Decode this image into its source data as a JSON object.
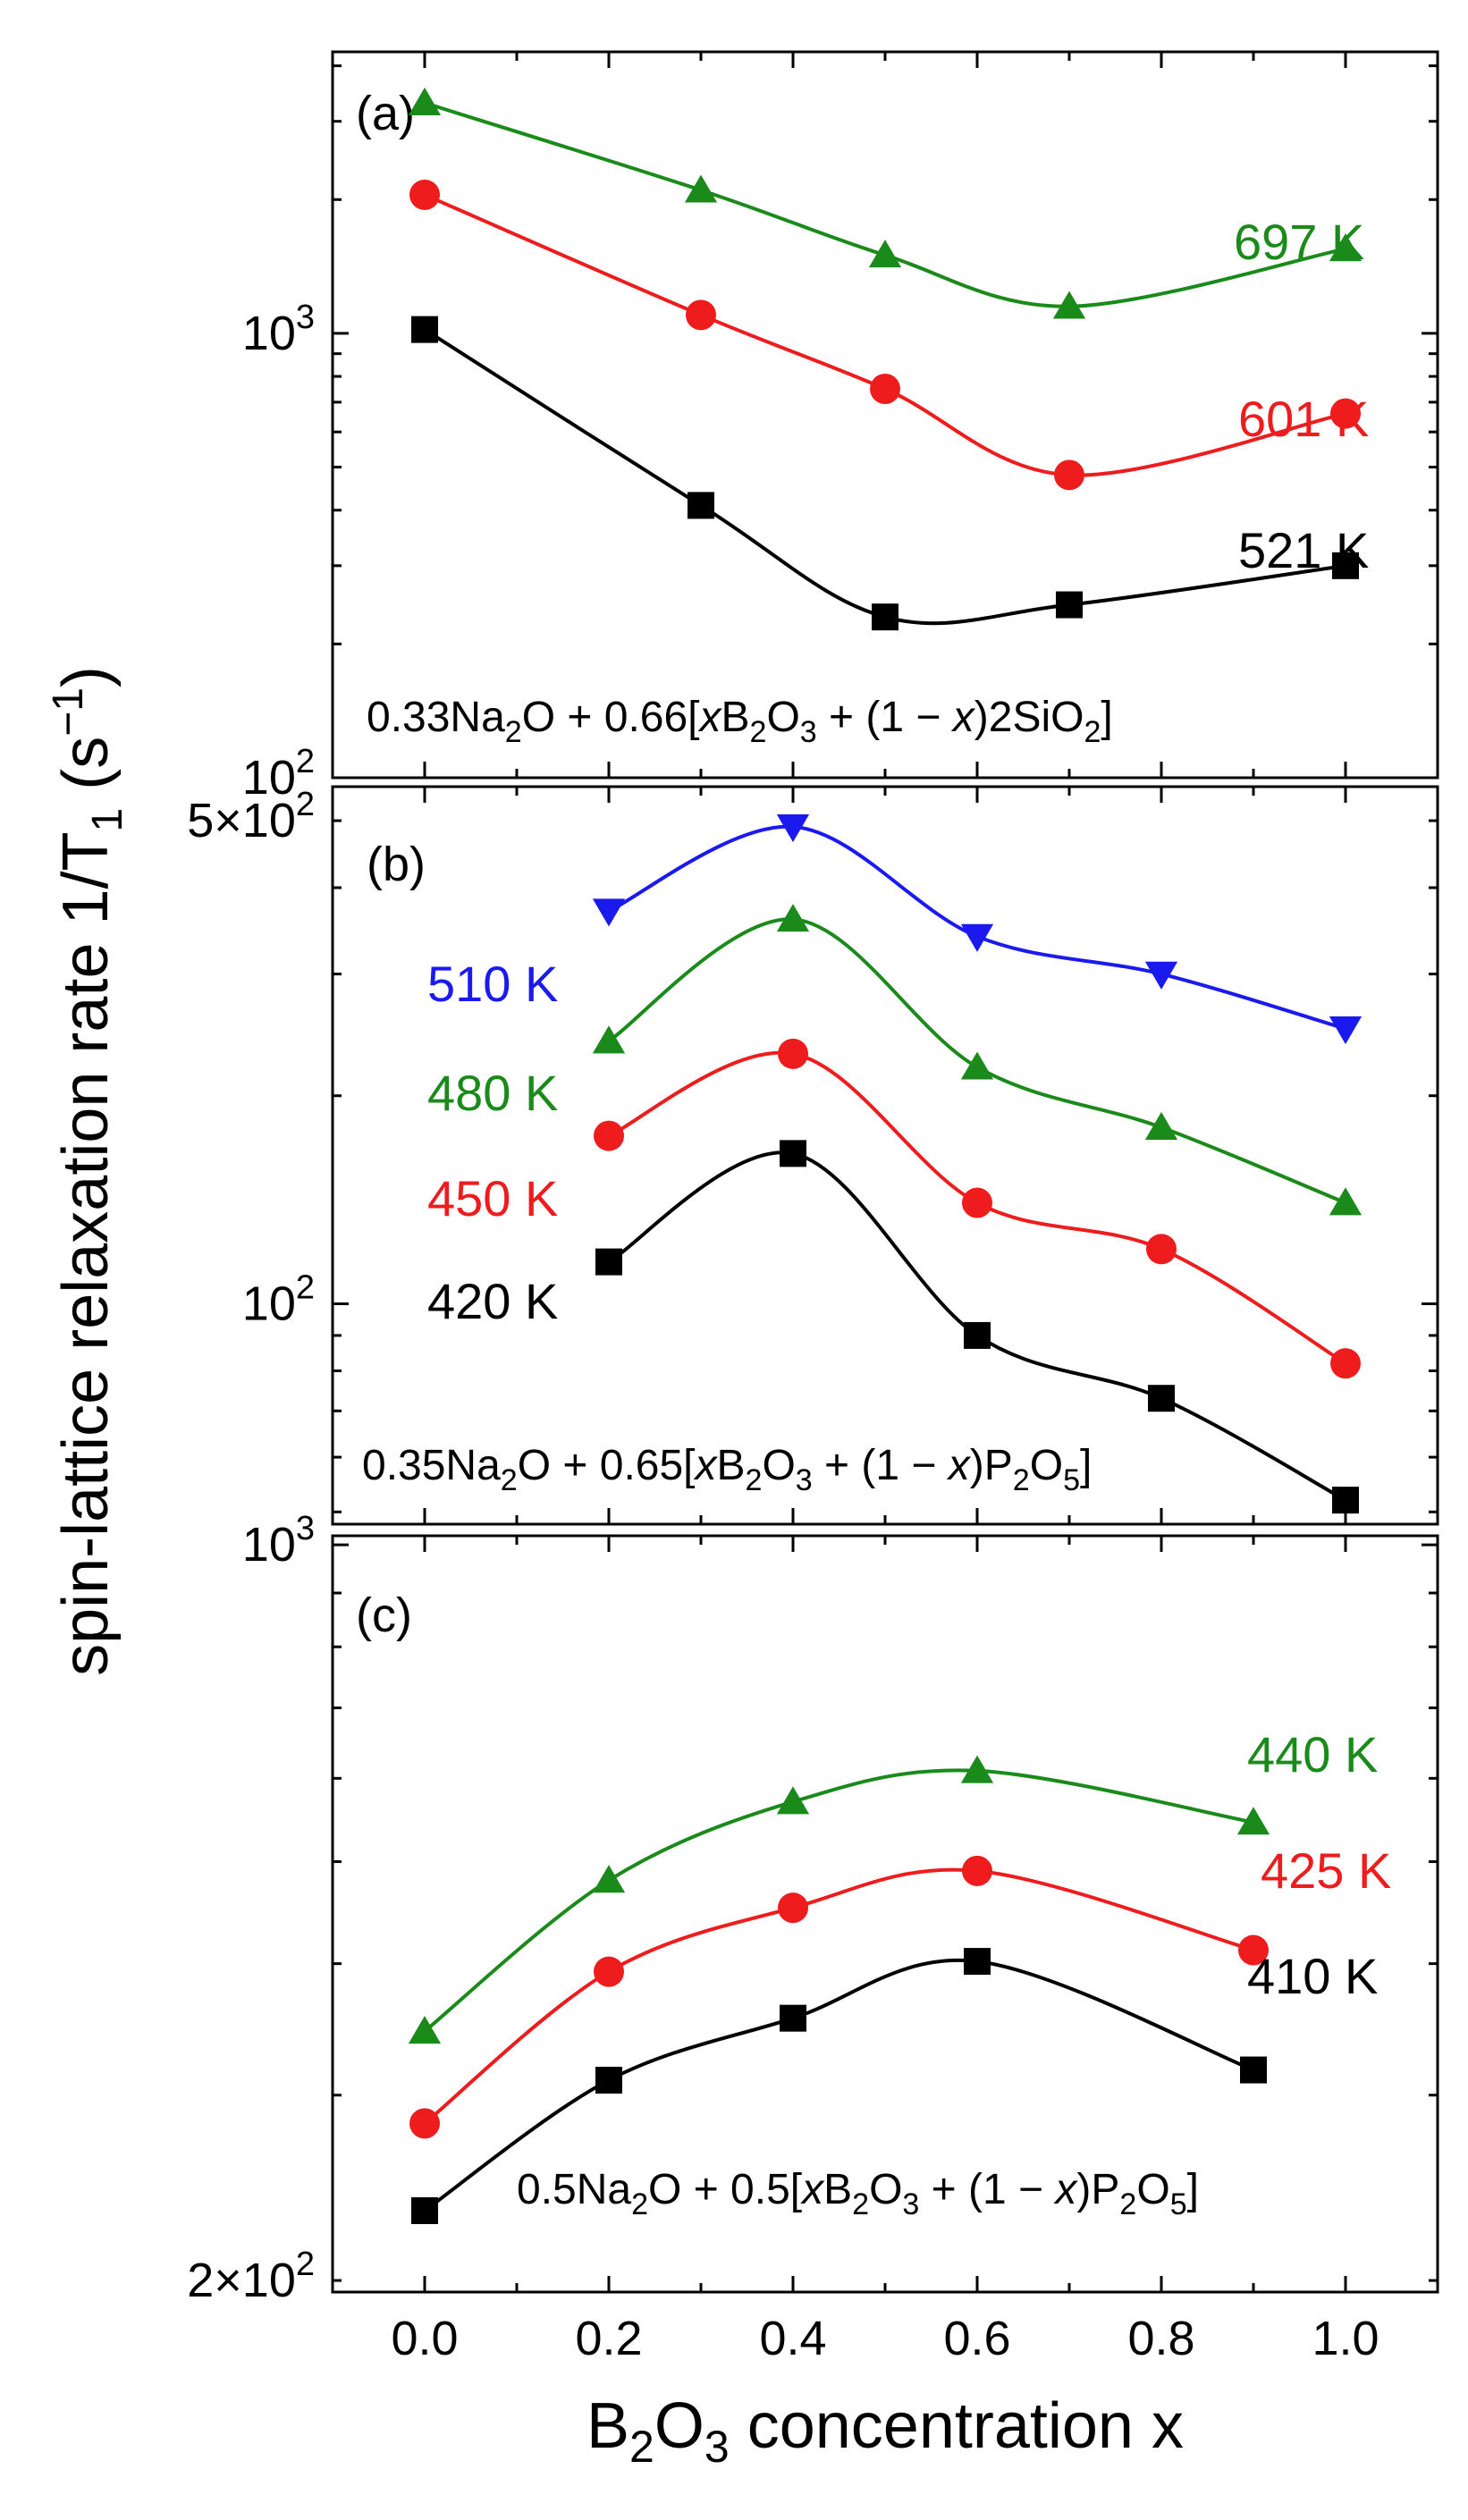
{
  "chart_data": {
    "type": "line",
    "ylabel_main": "spin-lattice relaxation rate 1/T",
    "ylabel_sub": "1",
    "ylabel_unit": " (s",
    "ylabel_unit_sup": "−1",
    "ylabel_close": ")",
    "xlabel_pre": "B",
    "xlabel_sub1": "2",
    "xlabel_mid": "O",
    "xlabel_sub2": "3",
    "xlabel_post": " concentration x",
    "xlim": [
      -0.1,
      1.1
    ],
    "xticks": [
      "0.0",
      "0.2",
      "0.4",
      "0.6",
      "0.8",
      "1.0"
    ],
    "xtick_values": [
      0.0,
      0.2,
      0.4,
      0.6,
      0.8,
      1.0
    ],
    "colors": {
      "black": "#000000",
      "red": "#ee1c1c",
      "green": "#1a8a1a",
      "blue": "#1a1aee"
    },
    "panels": [
      {
        "letter": "(a)",
        "ylim": [
          100,
          4300
        ],
        "yticks": [
          {
            "value": 1000,
            "base": "10",
            "exp": "3"
          },
          {
            "value": 100,
            "base": "10",
            "exp": "2"
          }
        ],
        "composition": [
          "0.33Na",
          "2",
          "O + 0.66[",
          "x",
          "B",
          "2",
          "O",
          "3",
          " + (1 − ",
          "x",
          ")2SiO",
          "2",
          "]"
        ],
        "series": [
          {
            "name": "697 K",
            "color": "green",
            "marker": "triangle-up",
            "x": [
              0.0,
              0.3,
              0.5,
              0.7,
              1.0
            ],
            "y": [
              3300,
              2100,
              1500,
              1150,
              1550
            ]
          },
          {
            "name": "601 K",
            "color": "red",
            "marker": "circle",
            "x": [
              0.0,
              0.3,
              0.5,
              0.7,
              1.0
            ],
            "y": [
              2050,
              1100,
              750,
              480,
              660
            ]
          },
          {
            "name": "521 K",
            "color": "black",
            "marker": "square",
            "x": [
              0.0,
              0.3,
              0.5,
              0.7,
              1.0
            ],
            "y": [
              1020,
              410,
              230,
              245,
              300
            ]
          }
        ]
      },
      {
        "letter": "(b)",
        "ylim": [
          48,
          560
        ],
        "yticks": [
          {
            "value": 500,
            "base": "5×10",
            "exp": "2"
          },
          {
            "value": 100,
            "base": "10",
            "exp": "2"
          }
        ],
        "composition": [
          "0.35Na",
          "2",
          "O + 0.65[",
          "x",
          "B",
          "2",
          "O",
          "3",
          " + (1 − ",
          "x",
          ")P",
          "2",
          "O",
          "5",
          "]"
        ],
        "series": [
          {
            "name": "510 K",
            "color": "blue",
            "marker": "triangle-down",
            "x": [
              0.2,
              0.4,
              0.6,
              0.8,
              1.0
            ],
            "y": [
              370,
              490,
              340,
              300,
              250
            ]
          },
          {
            "name": "480 K",
            "color": "green",
            "marker": "triangle-up",
            "x": [
              0.2,
              0.4,
              0.6,
              0.8,
              1.0
            ],
            "y": [
              240,
              360,
              220,
              180,
              140
            ]
          },
          {
            "name": "450 K",
            "color": "red",
            "marker": "circle",
            "x": [
              0.2,
              0.4,
              0.6,
              0.8,
              1.0
            ],
            "y": [
              175,
              230,
              140,
              120,
              82
            ]
          },
          {
            "name": "420 K",
            "color": "black",
            "marker": "square",
            "x": [
              0.2,
              0.4,
              0.6,
              0.8,
              1.0
            ],
            "y": [
              115,
              165,
              90,
              73,
              52
            ]
          }
        ]
      },
      {
        "letter": "(c)",
        "ylim": [
          195,
          1020
        ],
        "yticks": [
          {
            "value": 1000,
            "base": "10",
            "exp": "3"
          },
          {
            "value": 200,
            "base": "2×10",
            "exp": "2"
          }
        ],
        "composition": [
          "0.5Na",
          "2",
          "O + 0.5[",
          "x",
          "B",
          "2",
          "O",
          "3",
          " + (1 − ",
          "x",
          ")P",
          "2",
          "O",
          "5",
          "]"
        ],
        "series": [
          {
            "name": "440 K",
            "color": "green",
            "marker": "triangle-up",
            "x": [
              0.0,
              0.2,
              0.4,
              0.6,
              0.9
            ],
            "y": [
              345,
              480,
              570,
              610,
              545
            ]
          },
          {
            "name": "425 K",
            "color": "red",
            "marker": "circle",
            "x": [
              0.0,
              0.2,
              0.4,
              0.6,
              0.9
            ],
            "y": [
              282,
              393,
              452,
              490,
              412
            ]
          },
          {
            "name": "410 K",
            "color": "black",
            "marker": "square",
            "x": [
              0.0,
              0.2,
              0.4,
              0.6,
              0.9
            ],
            "y": [
              233,
              310,
              355,
              402,
              317
            ]
          }
        ]
      }
    ]
  }
}
